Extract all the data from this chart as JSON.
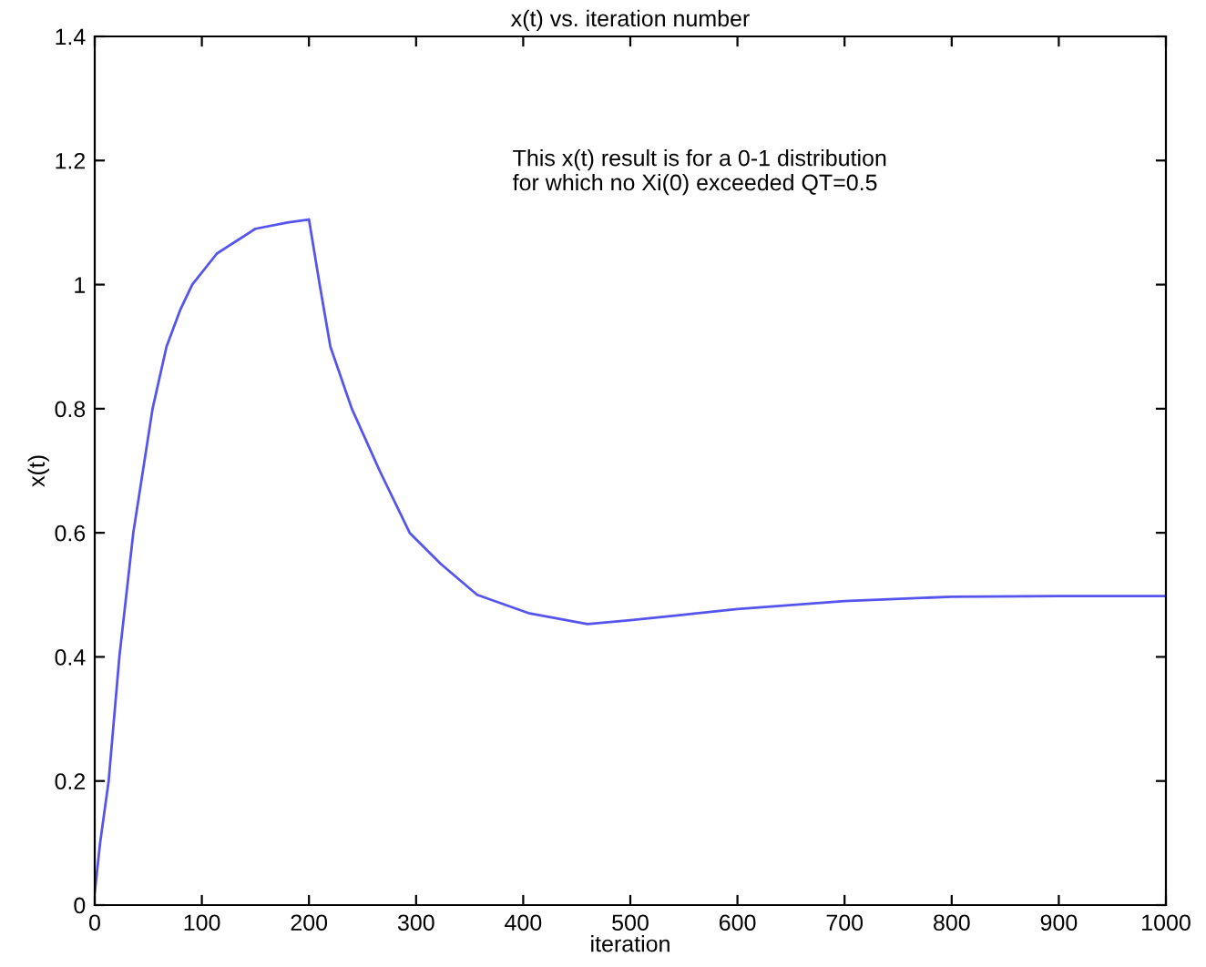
{
  "chart_data": {
    "type": "line",
    "title": "x(t) vs. iteration number",
    "xlabel": "iteration",
    "ylabel": "x(t)",
    "annotations": [
      "This x(t) result is for a 0-1 distribution\nfor which no Xi(0) exceeded QT=0.5"
    ],
    "series": [
      {
        "color": "#5555ee",
        "x": [
          0,
          5,
          13,
          23,
          36,
          54,
          67,
          80,
          91,
          114,
          150,
          180,
          200,
          210,
          220,
          240,
          266,
          294,
          323,
          357,
          406,
          460,
          500,
          550,
          600,
          700,
          800,
          900,
          1000
        ],
        "values": [
          0.02,
          0.1,
          0.2,
          0.4,
          0.6,
          0.8,
          0.9,
          0.96,
          1.0,
          1.05,
          1.09,
          1.1,
          1.105,
          1.0,
          0.9,
          0.8,
          0.7,
          0.6,
          0.55,
          0.5,
          0.47,
          0.453,
          0.459,
          0.468,
          0.477,
          0.49,
          0.497,
          0.498,
          0.498
        ]
      }
    ],
    "xlim": [
      0,
      1000
    ],
    "ylim": [
      0,
      1.4
    ],
    "xticks": [
      0,
      100,
      200,
      300,
      400,
      500,
      600,
      700,
      800,
      900,
      1000
    ],
    "yticks": [
      0,
      0.2,
      0.4,
      0.6,
      0.8,
      1,
      1.2,
      1.4
    ],
    "grid": false,
    "legend": false,
    "marker": "none",
    "line_style": "solid"
  }
}
